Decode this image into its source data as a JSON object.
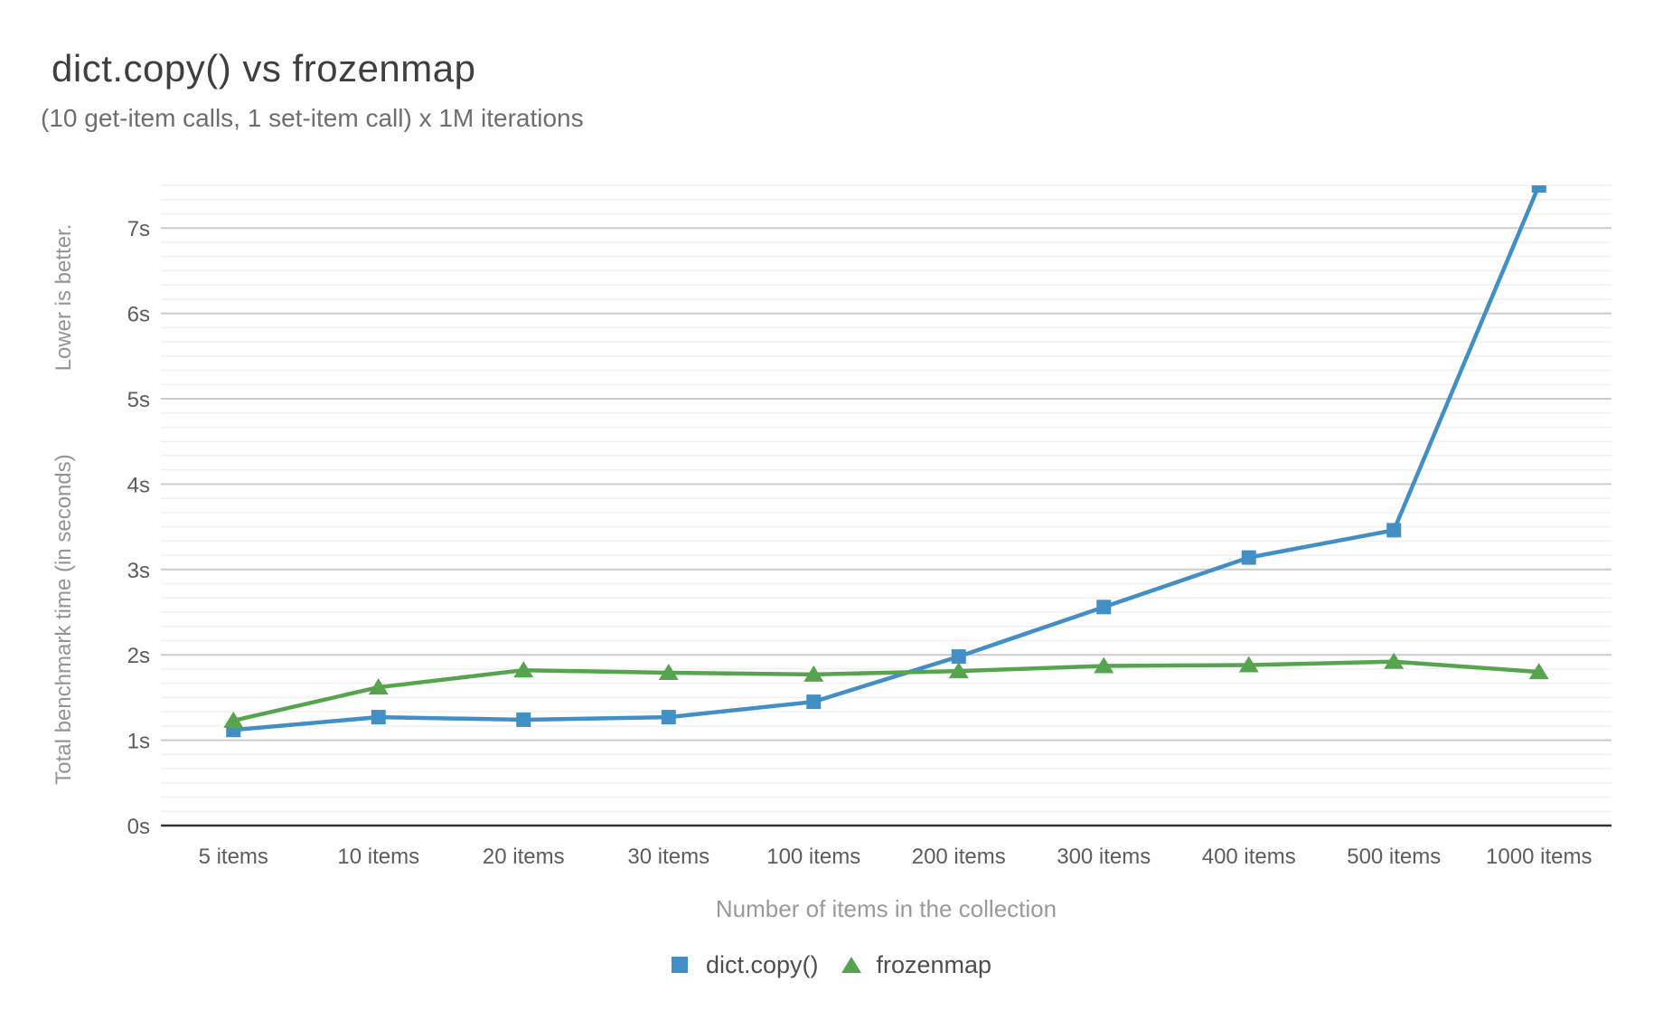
{
  "header": {
    "title": "dict.copy() vs frozenmap",
    "subtitle": "(10 get-item calls, 1 set-item call) x 1M iterations"
  },
  "axes": {
    "y": {
      "note": "Lower is better.",
      "title": "Total benchmark time (in seconds)",
      "tick_labels": [
        "0s",
        "1s",
        "2s",
        "3s",
        "4s",
        "5s",
        "6s",
        "7s"
      ]
    },
    "x": {
      "title": "Number of items in the collection"
    }
  },
  "legend": [
    {
      "label": "dict.copy()",
      "marker": "square",
      "color": "#418fc5"
    },
    {
      "label": "frozenmap",
      "marker": "triangle",
      "color": "#57a44e"
    }
  ],
  "colors": {
    "dict_copy_blue": "#418fc5",
    "frozenmap_green": "#57a44e",
    "major_gridline": "#cccccc",
    "minor_gridline": "#f1f1f1",
    "axis_line": "#333333",
    "tick_label": "#5c5c5c"
  },
  "chart_data": {
    "type": "line",
    "title": "dict.copy() vs frozenmap",
    "subtitle": "(10 get-item calls, 1 set-item call) x 1M iterations",
    "xlabel": "Number of items in the collection",
    "ylabel": "Total benchmark time (in seconds)",
    "annotation": "Lower is better.",
    "categories": [
      "5 items",
      "10 items",
      "20 items",
      "30 items",
      "100 items",
      "200 items",
      "300 items",
      "400 items",
      "500 items",
      "1000 items"
    ],
    "series": [
      {
        "name": "dict.copy()",
        "marker": "square",
        "color": "#418fc5",
        "values": [
          1.12,
          1.27,
          1.24,
          1.27,
          1.45,
          1.98,
          2.56,
          3.14,
          3.46,
          7.5
        ]
      },
      {
        "name": "frozenmap",
        "marker": "triangle",
        "color": "#57a44e",
        "values": [
          1.23,
          1.62,
          1.82,
          1.79,
          1.77,
          1.81,
          1.87,
          1.88,
          1.92,
          1.8
        ]
      }
    ],
    "ylim": [
      0,
      7.5
    ],
    "y_major_step": 1,
    "y_minor_subdivisions": 6,
    "grid": true,
    "legend_position": "bottom"
  }
}
